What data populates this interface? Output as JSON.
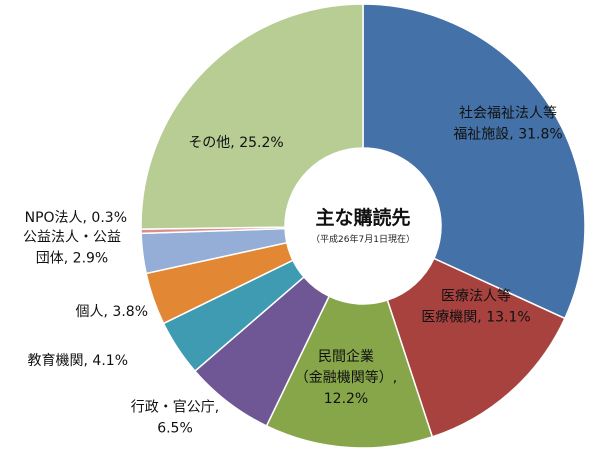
{
  "chart_data": {
    "type": "donut",
    "center": {
      "title": "主な購読先",
      "subtitle": "（平成26年7月1日現在）"
    },
    "series": [
      {
        "values": [
          31.8,
          13.1,
          12.2,
          6.5,
          4.1,
          3.8,
          2.9,
          0.3,
          25.2
        ],
        "labels": [
          [
            "社会福祉法人等",
            "福祉施設, 31.8%"
          ],
          [
            "医療法人等",
            "医療機関, 13.1%"
          ],
          [
            "民間企業",
            "（金融機関等）,",
            "12.2%"
          ],
          [
            "行政・官公庁,",
            "6.5%"
          ],
          [
            "教育機関, 4.1%"
          ],
          [
            "個人, 3.8%"
          ],
          [
            "公益法人・公益",
            "団体, 2.9%"
          ],
          [
            "NPO法人, 0.3%"
          ],
          [
            "その他, 25.2%"
          ]
        ],
        "colors": [
          "#4472a8",
          "#a8423f",
          "#87a64a",
          "#6f5795",
          "#3e9bb1",
          "#e28834",
          "#94aed8",
          "#d98e8c",
          "#b7cd93"
        ]
      }
    ],
    "legend": "none"
  }
}
